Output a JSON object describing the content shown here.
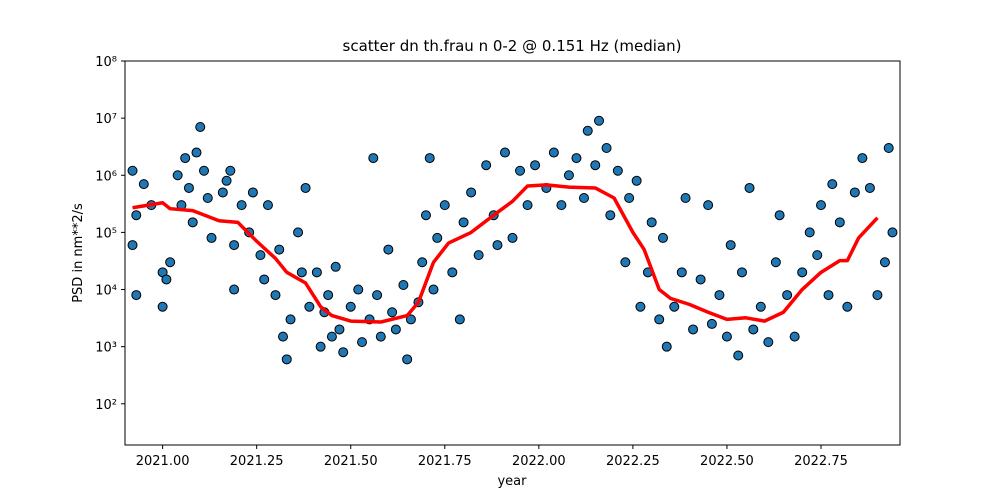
{
  "chart_data": {
    "type": "scatter",
    "title": "scatter dn th.frau n 0-2 @ 0.151 Hz (median)",
    "x_label": "year",
    "y_label": "PSD in nm**2/s",
    "y_scale": "log",
    "xlim": [
      2020.9,
      2022.96
    ],
    "ylim": [
      19,
      100000000
    ],
    "xticks": [
      {
        "value": 2021,
        "label": "2021.00"
      },
      {
        "value": 2021.25,
        "label": "2021.25"
      },
      {
        "value": 2021.5,
        "label": "2021.50"
      },
      {
        "value": 2021.75,
        "label": "2021.75"
      },
      {
        "value": 2022,
        "label": "2022.00"
      },
      {
        "value": 2022.25,
        "label": "2022.25"
      },
      {
        "value": 2022.5,
        "label": "2022.50"
      },
      {
        "value": 2022.75,
        "label": "2022.75"
      }
    ],
    "yticks": [
      {
        "value": 100,
        "label": "10²"
      },
      {
        "value": 1000,
        "label": "10³"
      },
      {
        "value": 10000,
        "label": "10⁴"
      },
      {
        "value": 100000,
        "label": "10⁵"
      },
      {
        "value": 1000000,
        "label": "10⁶"
      },
      {
        "value": 10000000,
        "label": "10⁷"
      },
      {
        "value": 100000000,
        "label": "10⁸"
      }
    ],
    "series": [
      {
        "style": "markers",
        "color": "#1f77b4",
        "x": [
          2020.92,
          2020.92,
          2020.93,
          2020.93,
          2020.95,
          2020.97,
          2021.0,
          2021.0,
          2021.01,
          2021.02,
          2021.04,
          2021.05,
          2021.06,
          2021.07,
          2021.08,
          2021.09,
          2021.1,
          2021.11,
          2021.12,
          2021.13,
          2021.16,
          2021.17,
          2021.18,
          2021.19,
          2021.19,
          2021.21,
          2021.23,
          2021.24,
          2021.26,
          2021.27,
          2021.28,
          2021.3,
          2021.31,
          2021.32,
          2021.33,
          2021.34,
          2021.36,
          2021.37,
          2021.38,
          2021.39,
          2021.41,
          2021.42,
          2021.43,
          2021.44,
          2021.45,
          2021.46,
          2021.47,
          2021.48,
          2021.5,
          2021.52,
          2021.53,
          2021.55,
          2021.56,
          2021.57,
          2021.58,
          2021.6,
          2021.61,
          2021.62,
          2021.64,
          2021.65,
          2021.66,
          2021.68,
          2021.69,
          2021.7,
          2021.71,
          2021.72,
          2021.73,
          2021.75,
          2021.77,
          2021.79,
          2021.8,
          2021.82,
          2021.84,
          2021.86,
          2021.88,
          2021.89,
          2021.91,
          2021.93,
          2021.95,
          2021.97,
          2021.99,
          2022.02,
          2022.04,
          2022.06,
          2022.08,
          2022.1,
          2022.12,
          2022.13,
          2022.15,
          2022.16,
          2022.18,
          2022.19,
          2022.21,
          2022.23,
          2022.24,
          2022.26,
          2022.27,
          2022.29,
          2022.3,
          2022.32,
          2022.33,
          2022.34,
          2022.36,
          2022.38,
          2022.39,
          2022.41,
          2022.43,
          2022.45,
          2022.46,
          2022.48,
          2022.5,
          2022.51,
          2022.53,
          2022.54,
          2022.56,
          2022.57,
          2022.59,
          2022.61,
          2022.63,
          2022.64,
          2022.66,
          2022.68,
          2022.7,
          2022.72,
          2022.74,
          2022.75,
          2022.77,
          2022.78,
          2022.8,
          2022.82,
          2022.84,
          2022.86,
          2022.88,
          2022.9,
          2022.92,
          2022.93,
          2022.94
        ],
        "values": [
          1200000,
          60000,
          200000,
          8000,
          700000,
          300000,
          20000,
          5000,
          15000,
          30000,
          1000000,
          300000,
          2000000,
          600000,
          150000,
          2500000,
          7000000,
          1200000,
          400000,
          80000,
          500000,
          800000,
          1200000,
          10000,
          60000,
          300000,
          100000,
          500000,
          40000,
          15000,
          300000,
          8000,
          50000,
          1500,
          600,
          3000,
          100000,
          20000,
          600000,
          5000,
          20000,
          1000,
          4000,
          8000,
          1500,
          25000,
          2000,
          800,
          5000,
          10000,
          1200,
          3000,
          2000000,
          8000,
          1500,
          50000,
          4000,
          2000,
          12000,
          600,
          3000,
          6000,
          30000,
          200000,
          2000000,
          10000,
          80000,
          300000,
          20000,
          3000,
          150000,
          500000,
          40000,
          1500000,
          200000,
          60000,
          2500000,
          80000,
          1200000,
          300000,
          1500000,
          600000,
          2500000,
          300000,
          1000000,
          2000000,
          400000,
          6000000,
          1500000,
          9000000,
          3000000,
          200000,
          1200000,
          30000,
          400000,
          800000,
          5000,
          20000,
          150000,
          3000,
          80000,
          1000,
          5000,
          20000,
          400000,
          2000,
          15000,
          300000,
          2500,
          8000,
          1500,
          60000,
          700,
          20000,
          600000,
          2000,
          5000,
          1200,
          30000,
          200000,
          8000,
          1500,
          20000,
          100000,
          40000,
          300000,
          8000,
          700000,
          150000,
          5000,
          500000,
          2000000,
          600000,
          8000,
          30000,
          3000000,
          100000
        ]
      },
      {
        "style": "line",
        "color": "#ff0000",
        "x": [
          2020.92,
          2021.0,
          2021.02,
          2021.08,
          2021.15,
          2021.2,
          2021.25,
          2021.3,
          2021.33,
          2021.38,
          2021.42,
          2021.45,
          2021.5,
          2021.58,
          2021.65,
          2021.68,
          2021.72,
          2021.76,
          2021.82,
          2021.88,
          2021.93,
          2021.97,
          2022.02,
          2022.08,
          2022.15,
          2022.2,
          2022.25,
          2022.28,
          2022.32,
          2022.35,
          2022.4,
          2022.45,
          2022.5,
          2022.55,
          2022.6,
          2022.65,
          2022.7,
          2022.75,
          2022.8,
          2022.82,
          2022.85,
          2022.9
        ],
        "values": [
          270000,
          330000,
          260000,
          240000,
          160000,
          150000,
          70000,
          35000,
          20000,
          13000,
          5000,
          3500,
          2800,
          2700,
          3500,
          6000,
          30000,
          65000,
          100000,
          200000,
          350000,
          650000,
          680000,
          620000,
          600000,
          400000,
          100000,
          50000,
          10000,
          7000,
          5500,
          4000,
          3000,
          3200,
          2800,
          4000,
          10000,
          20000,
          32000,
          32000,
          80000,
          180000
        ]
      }
    ]
  }
}
